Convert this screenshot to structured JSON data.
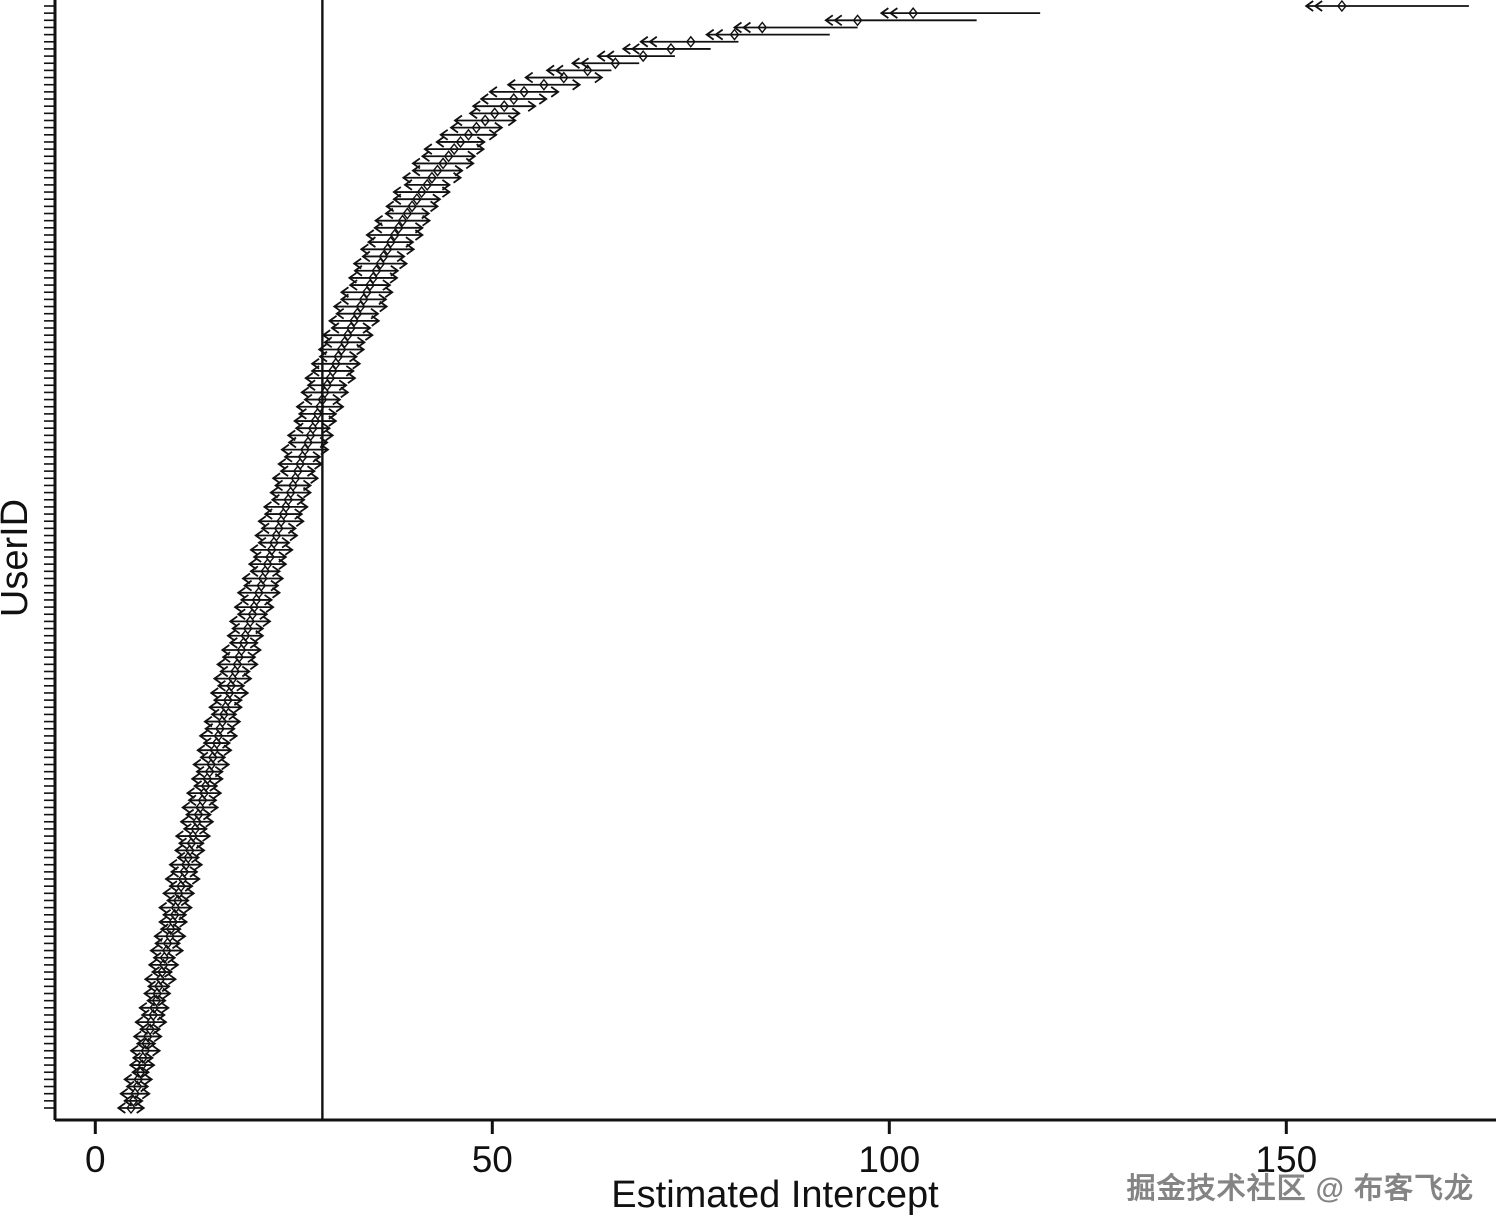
{
  "watermark": {
    "text": "掘金技术社区 @ 布客飞龙"
  },
  "chart_data": {
    "type": "scatter",
    "subtype": "caterpillar-plot-of-random-intercepts-with-error-bars",
    "title": "",
    "xlabel": "Estimated Intercept",
    "ylabel": "UserID",
    "x_ticks": [
      0,
      50,
      100,
      150
    ],
    "xlim": [
      -5,
      176
    ],
    "grid": false,
    "legend": "none",
    "reference_line_x": 28.6,
    "n_points": 155,
    "values": [
      4.5,
      4.8,
      5.0,
      5.3,
      5.4,
      5.7,
      5.9,
      6.0,
      6.3,
      6.4,
      6.6,
      6.9,
      7.0,
      7.3,
      7.4,
      7.7,
      7.8,
      8.0,
      8.2,
      8.4,
      8.6,
      8.7,
      9.0,
      9.1,
      9.4,
      9.5,
      9.8,
      10.0,
      10.1,
      10.4,
      10.5,
      10.8,
      11.0,
      11.2,
      11.4,
      11.7,
      11.9,
      12.1,
      12.3,
      12.6,
      12.8,
      13.0,
      13.2,
      13.5,
      13.7,
      13.9,
      14.1,
      14.4,
      14.6,
      14.8,
      15.0,
      15.3,
      15.5,
      15.7,
      16.0,
      16.2,
      16.4,
      16.7,
      16.9,
      17.1,
      17.3,
      17.6,
      17.9,
      18.1,
      18.4,
      18.7,
      18.9,
      19.2,
      19.5,
      19.8,
      20.0,
      20.3,
      20.6,
      20.9,
      21.1,
      21.4,
      21.7,
      22.0,
      22.2,
      22.5,
      22.8,
      23.1,
      23.4,
      23.7,
      24.0,
      24.3,
      24.6,
      24.9,
      25.2,
      25.5,
      25.8,
      26.1,
      26.4,
      26.8,
      27.1,
      27.4,
      27.7,
      28.0,
      28.3,
      28.6,
      28.9,
      29.2,
      29.6,
      29.9,
      30.3,
      30.6,
      31.0,
      31.4,
      31.8,
      32.2,
      32.6,
      33.0,
      33.4,
      33.8,
      34.2,
      34.6,
      35.0,
      35.4,
      35.9,
      36.3,
      36.8,
      37.2,
      37.7,
      38.2,
      38.7,
      39.3,
      39.9,
      40.5,
      41.1,
      41.8,
      42.4,
      43.1,
      43.8,
      44.5,
      45.2,
      46.0,
      47.0,
      48.0,
      49.1,
      50.3,
      51.5,
      52.7,
      54.0,
      56.5,
      59.0,
      62.0,
      65.5,
      69.0,
      72.5,
      75.0,
      80.5,
      84.0,
      96.0,
      103.0,
      157.0
    ],
    "ci_half_widths": [
      1.6,
      1.1,
      1.8,
      1.3,
      1.7,
      1.0,
      1.5,
      1.2,
      1.8,
      1.1,
      1.7,
      1.2,
      1.9,
      1.4,
      1.8,
      1.1,
      1.6,
      1.3,
      1.9,
      1.2,
      1.8,
      1.3,
      2.0,
      1.5,
      1.9,
      1.2,
      1.7,
      1.4,
      2.0,
      1.3,
      1.9,
      1.4,
      2.1,
      1.6,
      2.0,
      1.3,
      1.8,
      1.5,
      2.1,
      1.4,
      2.0,
      1.5,
      2.2,
      1.7,
      2.1,
      1.4,
      1.9,
      1.6,
      2.2,
      1.5,
      2.1,
      1.6,
      2.3,
      1.8,
      2.2,
      1.5,
      2.0,
      1.7,
      2.3,
      1.6,
      2.3,
      1.8,
      2.5,
      2.0,
      2.4,
      1.7,
      2.2,
      1.9,
      2.5,
      1.8,
      2.4,
      1.9,
      2.6,
      2.1,
      2.5,
      1.8,
      2.3,
      2.0,
      2.6,
      1.9,
      2.6,
      2.1,
      2.8,
      2.3,
      2.7,
      2.0,
      2.5,
      2.2,
      2.8,
      2.1,
      2.7,
      2.2,
      2.9,
      2.4,
      2.8,
      2.1,
      2.6,
      2.3,
      2.9,
      2.2,
      2.9,
      2.4,
      3.1,
      2.6,
      3.0,
      2.3,
      2.8,
      2.5,
      3.1,
      2.4,
      3.1,
      2.6,
      3.3,
      2.8,
      3.2,
      2.5,
      3.0,
      2.7,
      3.3,
      2.6,
      3.3,
      2.8,
      3.5,
      3.0,
      3.4,
      2.7,
      3.2,
      2.9,
      3.5,
      2.8,
      3.6,
      3.1,
      3.8,
      3.3,
      3.7,
      3.0,
      3.5,
      3.2,
      3.8,
      3.1,
      3.9,
      4.1,
      4.3,
      4.5,
      4.8,
      5.1,
      5.4,
      5.7,
      6.0,
      6.3,
      3.5,
      3.5,
      4.0,
      4.0,
      4.5
    ],
    "right_tail_lengths": {
      "145": 3,
      "146": 3,
      "147": 4,
      "148": 5,
      "149": 6,
      "150": 12,
      "151": 12,
      "152": 15,
      "153": 16,
      "154": 16
    }
  }
}
